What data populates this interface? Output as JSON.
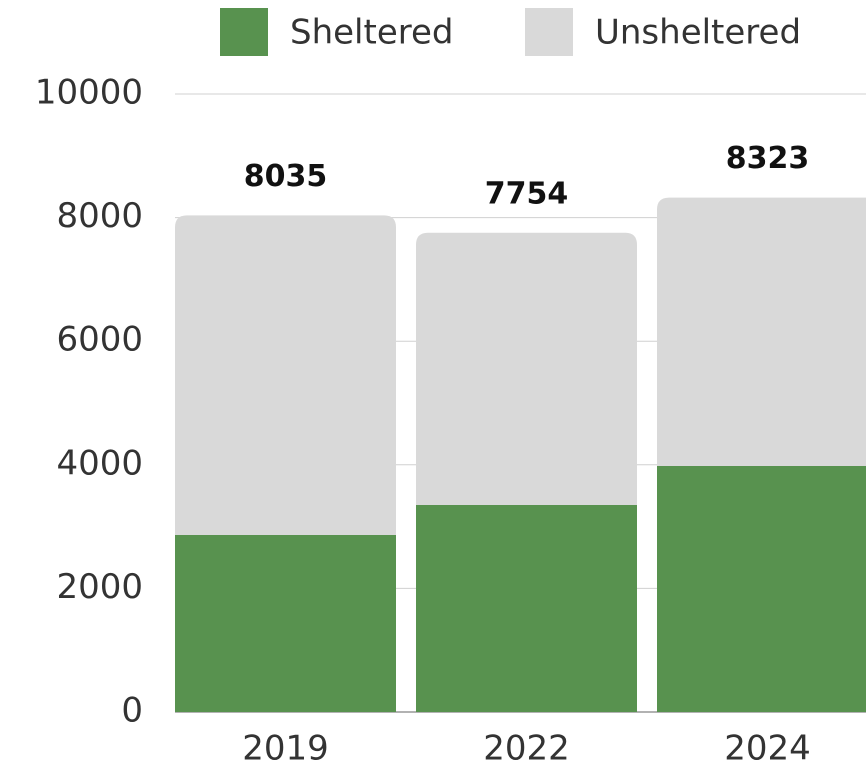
{
  "chart_data": {
    "type": "stacked-bar",
    "categories": [
      "2019",
      "2022",
      "2024"
    ],
    "series": [
      {
        "name": "Sheltered",
        "color": "#58924f",
        "values": [
          2864,
          3350,
          3981
        ]
      },
      {
        "name": "Unsheltered",
        "color": "#d9d9d9",
        "values": [
          5171,
          4404,
          4342
        ]
      }
    ],
    "totals": [
      8035,
      7754,
      8323
    ],
    "ylim": [
      0,
      10000
    ],
    "yticks": [
      0,
      2000,
      4000,
      6000,
      8000,
      10000
    ],
    "grid": true
  }
}
